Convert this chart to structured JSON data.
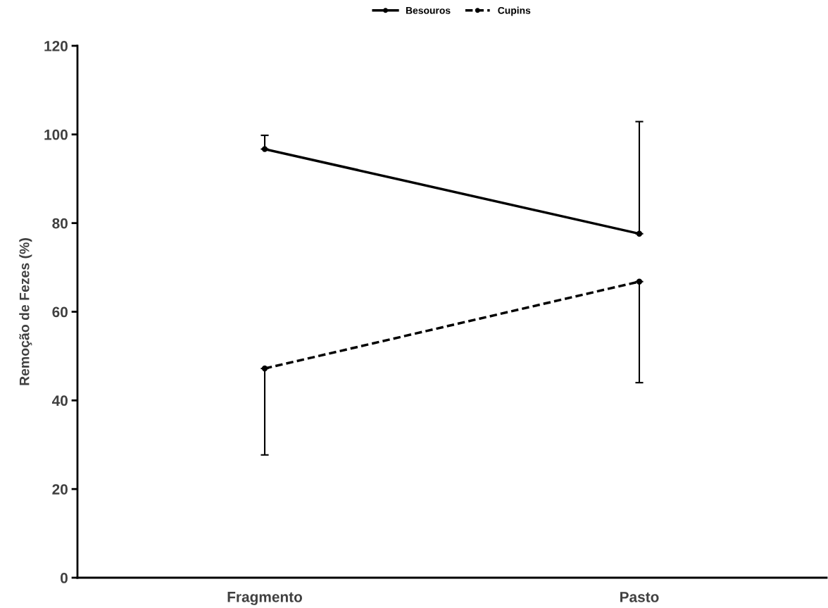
{
  "chart_data": {
    "type": "line",
    "ylabel": "Remoção de Fezes (%)",
    "categories": [
      "Fragmento",
      "Pasto"
    ],
    "series": [
      {
        "name": "Besouros",
        "color": "#000000",
        "line_style": "solid",
        "values": [
          96.7,
          77.6
        ],
        "errors": [
          [
            96.7,
            99.8
          ],
          [
            77.6,
            102.9
          ]
        ]
      },
      {
        "name": "Cupins",
        "color": "#000000",
        "line_style": "dashed",
        "values": [
          47.2,
          66.8
        ],
        "errors": [
          [
            27.7,
            47.2
          ],
          [
            44.0,
            66.8
          ]
        ]
      }
    ],
    "ylim": [
      0,
      120
    ],
    "yticks": [
      0,
      20,
      40,
      60,
      80,
      100,
      120
    ],
    "grid": false,
    "legend": "top",
    "marker": "circle"
  }
}
